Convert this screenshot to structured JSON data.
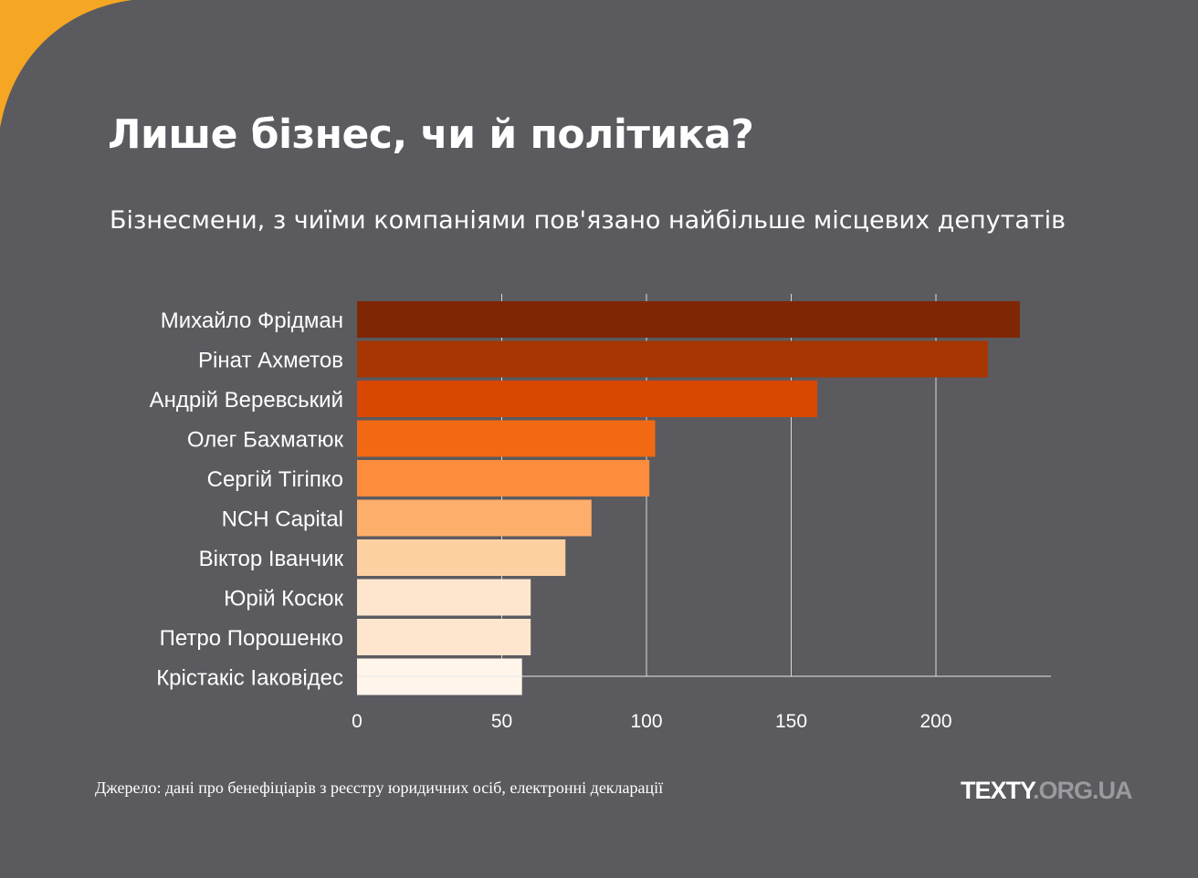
{
  "title": "Лише бізнес, чи й політика?",
  "subtitle": "Бізнесмени, з чиїми компаніями пов'язано найбільше місцевих депутатів",
  "source": "Джерело: дані про бенефіціарів з реєстру юридичних осіб, електронні декларації",
  "logo": {
    "part1": "TEXTY",
    "part2": ".ORG.UA"
  },
  "colors": {
    "background": "#5b5a5f",
    "accent_corner": "#f5a623"
  },
  "chart_data": {
    "type": "bar",
    "orientation": "horizontal",
    "categories": [
      "Михайло Фрідман",
      "Рінат Ахметов",
      "Андрій Веревський",
      "Олег Бахматюк",
      "Сергій Тігіпко",
      "NCH Capital",
      "Віктор Іванчик",
      "Юрій Косюк",
      "Петро Порошенко",
      "Крістакіс Іаковідес"
    ],
    "values": [
      229,
      218,
      159,
      103,
      101,
      81,
      72,
      60,
      60,
      57
    ],
    "colors": [
      "#7f2704",
      "#a63603",
      "#d94801",
      "#f16913",
      "#fd8d3c",
      "#fdae6b",
      "#fdd0a2",
      "#fee6ce",
      "#fee6ce",
      "#fff5eb"
    ],
    "xticks": [
      0,
      50,
      100,
      150,
      200
    ],
    "xlim": [
      0,
      240
    ],
    "grid": true,
    "title": "",
    "xlabel": "",
    "ylabel": ""
  }
}
